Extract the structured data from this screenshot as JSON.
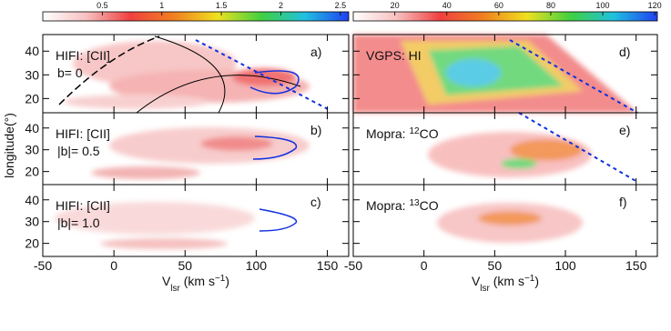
{
  "colorbars": [
    {
      "lim": [
        0,
        2.57
      ],
      "ticks": [
        0.5,
        1,
        1.5,
        2,
        2.5
      ],
      "colors": [
        "#ffffff",
        "#f7c0c0",
        "#f04040",
        "#f08020",
        "#f0e020",
        "#40d040",
        "#20c0e0",
        "#2040f0"
      ]
    },
    {
      "lim": [
        4,
        121
      ],
      "ticks": [
        20,
        40,
        60,
        80,
        100,
        120
      ],
      "colors": [
        "#ffffff",
        "#f7c0c0",
        "#f04040",
        "#f08020",
        "#f0e020",
        "#40d040",
        "#20c0e0",
        "#2040f0"
      ]
    }
  ],
  "chart_data": [
    {
      "type": "heatmap",
      "title_parts": [
        "HIFI: [CII]"
      ],
      "subtitle": "b= 0",
      "panel_label": "a)",
      "xlim": [
        -50,
        165
      ],
      "ylim": [
        14,
        47
      ],
      "xticks": [
        -50,
        0,
        50,
        100,
        150
      ],
      "yticks": [
        20,
        30,
        40
      ],
      "ytick_labels": true,
      "xtick_labels": false,
      "y_label": "longitude(°)"
    },
    {
      "type": "heatmap",
      "title_parts": [
        "HIFI: [CII]"
      ],
      "subtitle": "|b|= 0.5",
      "panel_label": "b)",
      "xlim": [
        -50,
        165
      ],
      "ylim": [
        14,
        47
      ],
      "xticks": [
        -50,
        0,
        50,
        100,
        150
      ],
      "yticks": [
        20,
        30,
        40
      ],
      "ytick_labels": true,
      "xtick_labels": false
    },
    {
      "type": "heatmap",
      "title_parts": [
        "HIFI: [CII]"
      ],
      "subtitle": "|b|= 1.0",
      "panel_label": "c)",
      "xlim": [
        -50,
        165
      ],
      "ylim": [
        14,
        47
      ],
      "xticks": [
        -50,
        0,
        50,
        100,
        150
      ],
      "yticks": [
        20,
        30,
        40
      ],
      "ytick_labels": true,
      "xtick_labels": true,
      "x_label_parts": [
        "V",
        "lsr",
        " (km s",
        "−1",
        ")"
      ]
    },
    {
      "type": "heatmap",
      "title_parts": [
        "VGPS: HI"
      ],
      "panel_label": "d)",
      "xlim": [
        -50,
        165
      ],
      "ylim": [
        14,
        47
      ],
      "xticks": [
        -50,
        0,
        50,
        100,
        150
      ],
      "yticks": [
        20,
        30,
        40
      ],
      "ytick_labels": false,
      "xtick_labels": false
    },
    {
      "type": "heatmap",
      "title_parts": [
        "Mopra: ",
        "12",
        "CO"
      ],
      "panel_label": "e)",
      "xlim": [
        -50,
        165
      ],
      "ylim": [
        14,
        47
      ],
      "xticks": [
        -50,
        0,
        50,
        100,
        150
      ],
      "yticks": [
        20,
        30,
        40
      ],
      "ytick_labels": false,
      "xtick_labels": false
    },
    {
      "type": "heatmap",
      "title_parts": [
        "Mopra: ",
        "13",
        "CO"
      ],
      "panel_label": "f)",
      "xlim": [
        -50,
        165
      ],
      "ylim": [
        14,
        47
      ],
      "xticks": [
        -50,
        0,
        50,
        100,
        150
      ],
      "yticks": [
        20,
        30,
        40
      ],
      "ytick_labels": false,
      "xtick_labels": true,
      "x_label_parts": [
        "V",
        "lsr",
        " (km s",
        "−1",
        ")"
      ]
    }
  ]
}
